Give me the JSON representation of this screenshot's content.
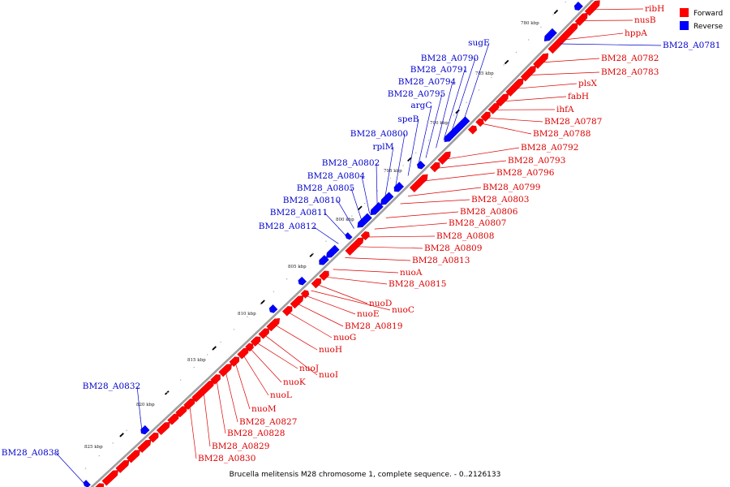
{
  "caption": "Brucella melitensis M28 chromosome 1, complete sequence. - 0..2126133",
  "legend": [
    {
      "label": "Forward",
      "color": "#ff0000"
    },
    {
      "label": "Reverse",
      "color": "#0000ff"
    }
  ],
  "colors": {
    "forward": "#ff0000",
    "reverse": "#0000ff",
    "backbone": "#888888"
  },
  "ticks": [
    "780 kbp",
    "785 kbp",
    "790 kbp",
    "795 kbp",
    "800 kbp",
    "805 kbp",
    "810 kbp",
    "815 kbp",
    "820 kbp",
    "825 kbp"
  ],
  "forward_labels": [
    "ribH",
    "nusB",
    "hppA",
    "BM28_A0782",
    "BM28_A0783",
    "plsX",
    "fabH",
    "ihfA",
    "BM28_A0787",
    "BM28_A0788",
    "BM28_A0792",
    "BM28_A0793",
    "BM28_A0796",
    "BM28_A0799",
    "BM28_A0803",
    "BM28_A0806",
    "BM28_A0807",
    "BM28_A0808",
    "BM28_A0809",
    "BM28_A0813",
    "nuoA",
    "BM28_A0815",
    "nuoD",
    "nuoC",
    "nuoE",
    "BM28_A0819",
    "nuoG",
    "nuoH",
    "nuoI",
    "nuoJ",
    "nuoK",
    "nuoL",
    "nuoM",
    "BM28_A0827",
    "BM28_A0828",
    "BM28_A0829",
    "BM28_A0830"
  ],
  "reverse_labels": [
    "BM28_A0781",
    "sugE",
    "BM28_A0790",
    "BM28_A0791",
    "BM28_A0794",
    "BM28_A0795",
    "argC",
    "speB",
    "BM28_A0800",
    "rplM",
    "BM28_A0802",
    "BM28_A0804",
    "BM28_A0805",
    "BM28_A0810",
    "BM28_A0811",
    "BM28_A0812",
    "BM28_A0832",
    "BM28_A0838"
  ]
}
